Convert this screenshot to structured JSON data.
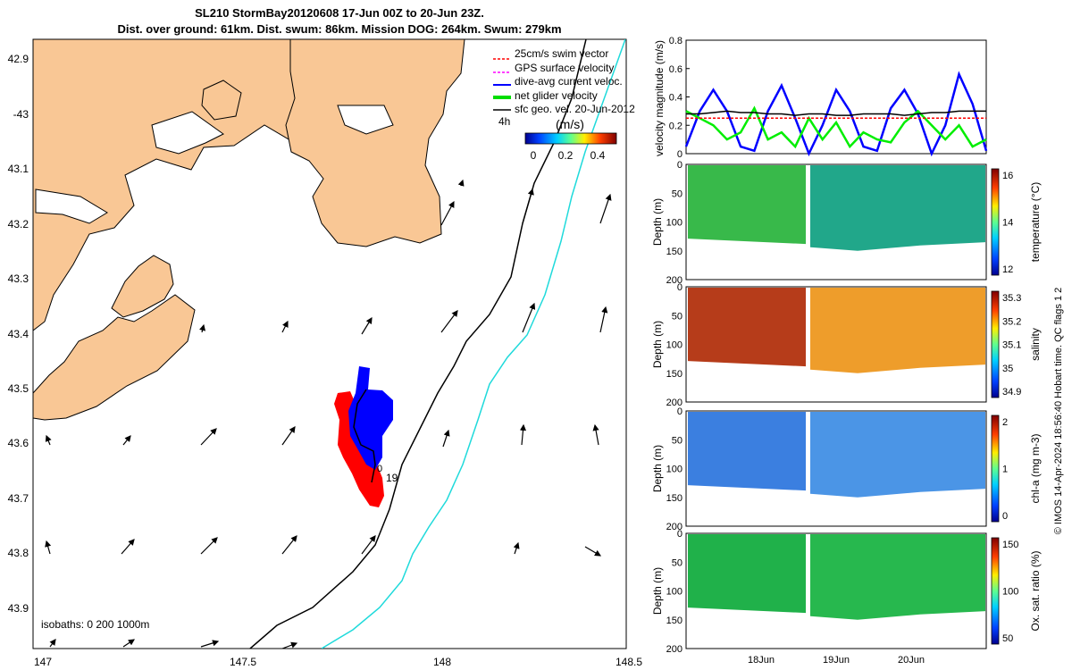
{
  "header": {
    "line1": "SL210 StormBay20120608 17-Jun 00Z to 20-Jun 23Z.",
    "line2": "Dist. over ground: 61km. Dist. swum: 86km. Mission DOG: 264km. Swum: 279km"
  },
  "map": {
    "lat_ticks": [
      "42.9",
      "-43",
      "43.1",
      "43.2",
      "43.3",
      "43.4",
      "43.5",
      "43.6",
      "43.7",
      "43.8",
      "43.9"
    ],
    "lon_ticks": [
      "147",
      "147.5",
      "148",
      "148.5"
    ],
    "isobaths_text": "isobaths: 0   200  1000m",
    "legend": [
      {
        "label": "25cm/s swim vector",
        "color": "#ff0000"
      },
      {
        "label": "GPS surface velocity",
        "color": "#ff00ff"
      },
      {
        "label": "dive-avg current veloc.",
        "color": "#0000ff"
      },
      {
        "label": "net glider velocity",
        "color": "#00dd00"
      },
      {
        "label": "sfc geo. vel. 20-Jun-2012",
        "color": "#000000"
      }
    ],
    "legend_side_label": "4h",
    "colorbar_title": "(m/s)",
    "colorbar_ticks": [
      "0",
      "0.2",
      "0.4"
    ],
    "annotations": [
      "19",
      "0"
    ],
    "colors": {
      "land": "#f9c795",
      "coast": "#000000",
      "isobath_200": "#000000",
      "isobath_1000": "#1fdadb",
      "track_red": "#ff0000",
      "track_blue": "#0000ff"
    }
  },
  "chart_data": [
    {
      "type": "line",
      "title": "",
      "ylabel": "velocity magnitude (m/s)",
      "ylim": [
        0,
        0.8
      ],
      "yticks": [
        "0",
        "0.2",
        "0.4",
        "0.6",
        "0.8"
      ],
      "xlim": [
        "17-Jun 00Z",
        "20-Jun 23Z"
      ],
      "series": [
        {
          "color": "#0000ff",
          "values": [
            0.05,
            0.3,
            0.45,
            0.3,
            0.05,
            0.02,
            0.3,
            0.48,
            0.25,
            0.0,
            0.2,
            0.45,
            0.3,
            0.05,
            0.02,
            0.32,
            0.45,
            0.28,
            0.0,
            0.2,
            0.56,
            0.35,
            0.02
          ]
        },
        {
          "color": "#00ee00",
          "values": [
            0.3,
            0.25,
            0.2,
            0.1,
            0.15,
            0.32,
            0.1,
            0.15,
            0.05,
            0.25,
            0.1,
            0.22,
            0.05,
            0.15,
            0.1,
            0.08,
            0.22,
            0.3,
            0.2,
            0.1,
            0.2,
            0.05,
            0.1
          ]
        },
        {
          "color": "#000000",
          "values": [
            0.28,
            0.28,
            0.29,
            0.3,
            0.29,
            0.29,
            0.28,
            0.28,
            0.27,
            0.28,
            0.28,
            0.27,
            0.27,
            0.28,
            0.28,
            0.28,
            0.27,
            0.28,
            0.29,
            0.29,
            0.3,
            0.3,
            0.3
          ]
        },
        {
          "color": "#ff0000",
          "values": [
            0.25,
            0.25,
            0.25,
            0.25,
            0.25,
            0.25,
            0.25,
            0.25,
            0.25,
            0.25,
            0.25,
            0.25,
            0.25,
            0.25,
            0.25,
            0.25,
            0.25,
            0.25,
            0.25,
            0.25,
            0.25,
            0.25,
            0.25
          ]
        }
      ]
    },
    {
      "type": "heatmap",
      "ylabel": "Depth (m)",
      "yticks": [
        "0",
        "50",
        "100",
        "150",
        "200"
      ],
      "colorbar_label": "temperature (°C)",
      "colorbar_ticks": [
        "12",
        "14",
        "16"
      ],
      "colors": [
        "#38b94a",
        "#21a78a"
      ]
    },
    {
      "type": "heatmap",
      "ylabel": "Depth (m)",
      "yticks": [
        "0",
        "50",
        "100",
        "150",
        "200"
      ],
      "colorbar_label": "salinity",
      "colorbar_ticks": [
        "34.9",
        "35",
        "35.1",
        "35.2",
        "35.3"
      ],
      "colors": [
        "#b63c1a",
        "#ee9d2b"
      ]
    },
    {
      "type": "heatmap",
      "ylabel": "Depth (m)",
      "yticks": [
        "0",
        "50",
        "100",
        "150",
        "200"
      ],
      "colorbar_label": "chl-a (mg m-3)",
      "colorbar_ticks": [
        "0",
        "1",
        "2"
      ],
      "colors": [
        "#3b7fe0",
        "#4b95e6"
      ]
    },
    {
      "type": "heatmap",
      "ylabel": "Depth (m)",
      "yticks": [
        "0",
        "50",
        "100",
        "150",
        "200"
      ],
      "colorbar_label": "Ox. sat. ratio (%)",
      "colorbar_ticks": [
        "50",
        "100",
        "150"
      ],
      "colors": [
        "#20b14a",
        "#27b84e"
      ]
    }
  ],
  "time_axis": [
    "18Jun",
    "19Jun",
    "20Jun"
  ],
  "side_text": {
    "copyright": "© IMOS 14-Apr-2024 18:56:40 Hobart time. QC flags 1  2"
  }
}
